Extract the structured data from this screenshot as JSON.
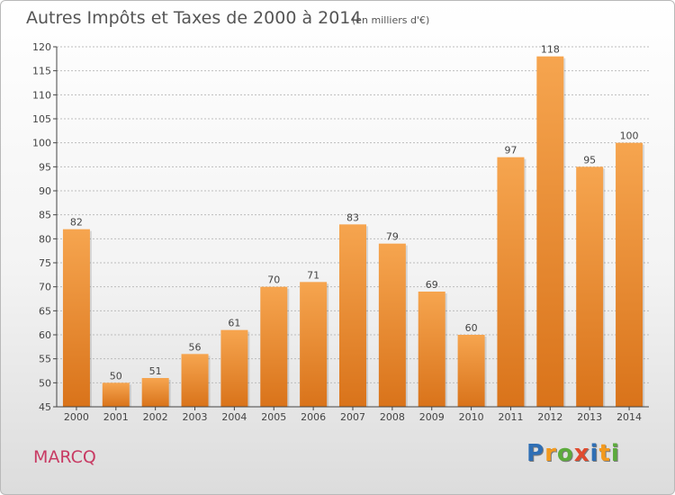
{
  "header": {
    "title": "Autres Impôts et Taxes de 2000 à 2014",
    "subtitle": "(en milliers d'€)"
  },
  "footer": {
    "city": "MARCQ",
    "brand_letters": [
      {
        "ch": "P",
        "color": "#2f6fb5"
      },
      {
        "ch": "r",
        "color": "#f39a1e"
      },
      {
        "ch": "o",
        "color": "#5cab3c"
      },
      {
        "ch": "x",
        "color": "#e04b2f"
      },
      {
        "ch": "i",
        "color": "#2f6fb5"
      },
      {
        "ch": "t",
        "color": "#f39a1e"
      },
      {
        "ch": "i",
        "color": "#5cab3c"
      }
    ]
  },
  "colors": {
    "bar_light": "#f6a54f",
    "bar_dark": "#d9731a",
    "grid": "#bdbdbd",
    "axis": "#444444"
  },
  "chart_data": {
    "type": "bar",
    "title": "Autres Impôts et Taxes de 2000 à 2014",
    "subtitle": "(en milliers d'€)",
    "categories": [
      "2000",
      "2001",
      "2002",
      "2003",
      "2004",
      "2005",
      "2006",
      "2007",
      "2008",
      "2009",
      "2010",
      "2011",
      "2012",
      "2013",
      "2014"
    ],
    "values": [
      82,
      50,
      51,
      56,
      61,
      70,
      71,
      83,
      79,
      69,
      60,
      97,
      118,
      95,
      100
    ],
    "ylim": [
      45,
      120
    ],
    "yticks": [
      45,
      50,
      55,
      60,
      65,
      70,
      75,
      80,
      85,
      90,
      95,
      100,
      105,
      110,
      115,
      120
    ],
    "grid": true,
    "data_labels": true
  }
}
